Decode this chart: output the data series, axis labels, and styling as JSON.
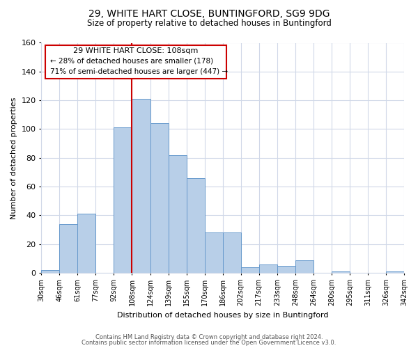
{
  "title_line1": "29, WHITE HART CLOSE, BUNTINGFORD, SG9 9DG",
  "title_line2": "Size of property relative to detached houses in Buntingford",
  "xlabel": "Distribution of detached houses by size in Buntingford",
  "ylabel": "Number of detached properties",
  "bin_labels": [
    "30sqm",
    "46sqm",
    "61sqm",
    "77sqm",
    "92sqm",
    "108sqm",
    "124sqm",
    "139sqm",
    "155sqm",
    "170sqm",
    "186sqm",
    "202sqm",
    "217sqm",
    "233sqm",
    "248sqm",
    "264sqm",
    "280sqm",
    "295sqm",
    "311sqm",
    "326sqm",
    "342sqm"
  ],
  "bar_values": [
    2,
    34,
    41,
    0,
    101,
    121,
    104,
    82,
    66,
    28,
    28,
    4,
    6,
    5,
    9,
    0,
    1,
    0,
    0,
    1
  ],
  "ylim": [
    0,
    160
  ],
  "yticks": [
    0,
    20,
    40,
    60,
    80,
    100,
    120,
    140,
    160
  ],
  "bar_color": "#b8cfe8",
  "bar_edge_color": "#6699cc",
  "vline_x_index": 5,
  "vline_color": "#cc0000",
  "annotation_title": "29 WHITE HART CLOSE: 108sqm",
  "annotation_line1": "← 28% of detached houses are smaller (178)",
  "annotation_line2": "71% of semi-detached houses are larger (447) →",
  "annotation_box_edge": "#cc0000",
  "footer_line1": "Contains HM Land Registry data © Crown copyright and database right 2024.",
  "footer_line2": "Contains public sector information licensed under the Open Government Licence v3.0.",
  "background_color": "#ffffff",
  "grid_color": "#d0d8e8"
}
